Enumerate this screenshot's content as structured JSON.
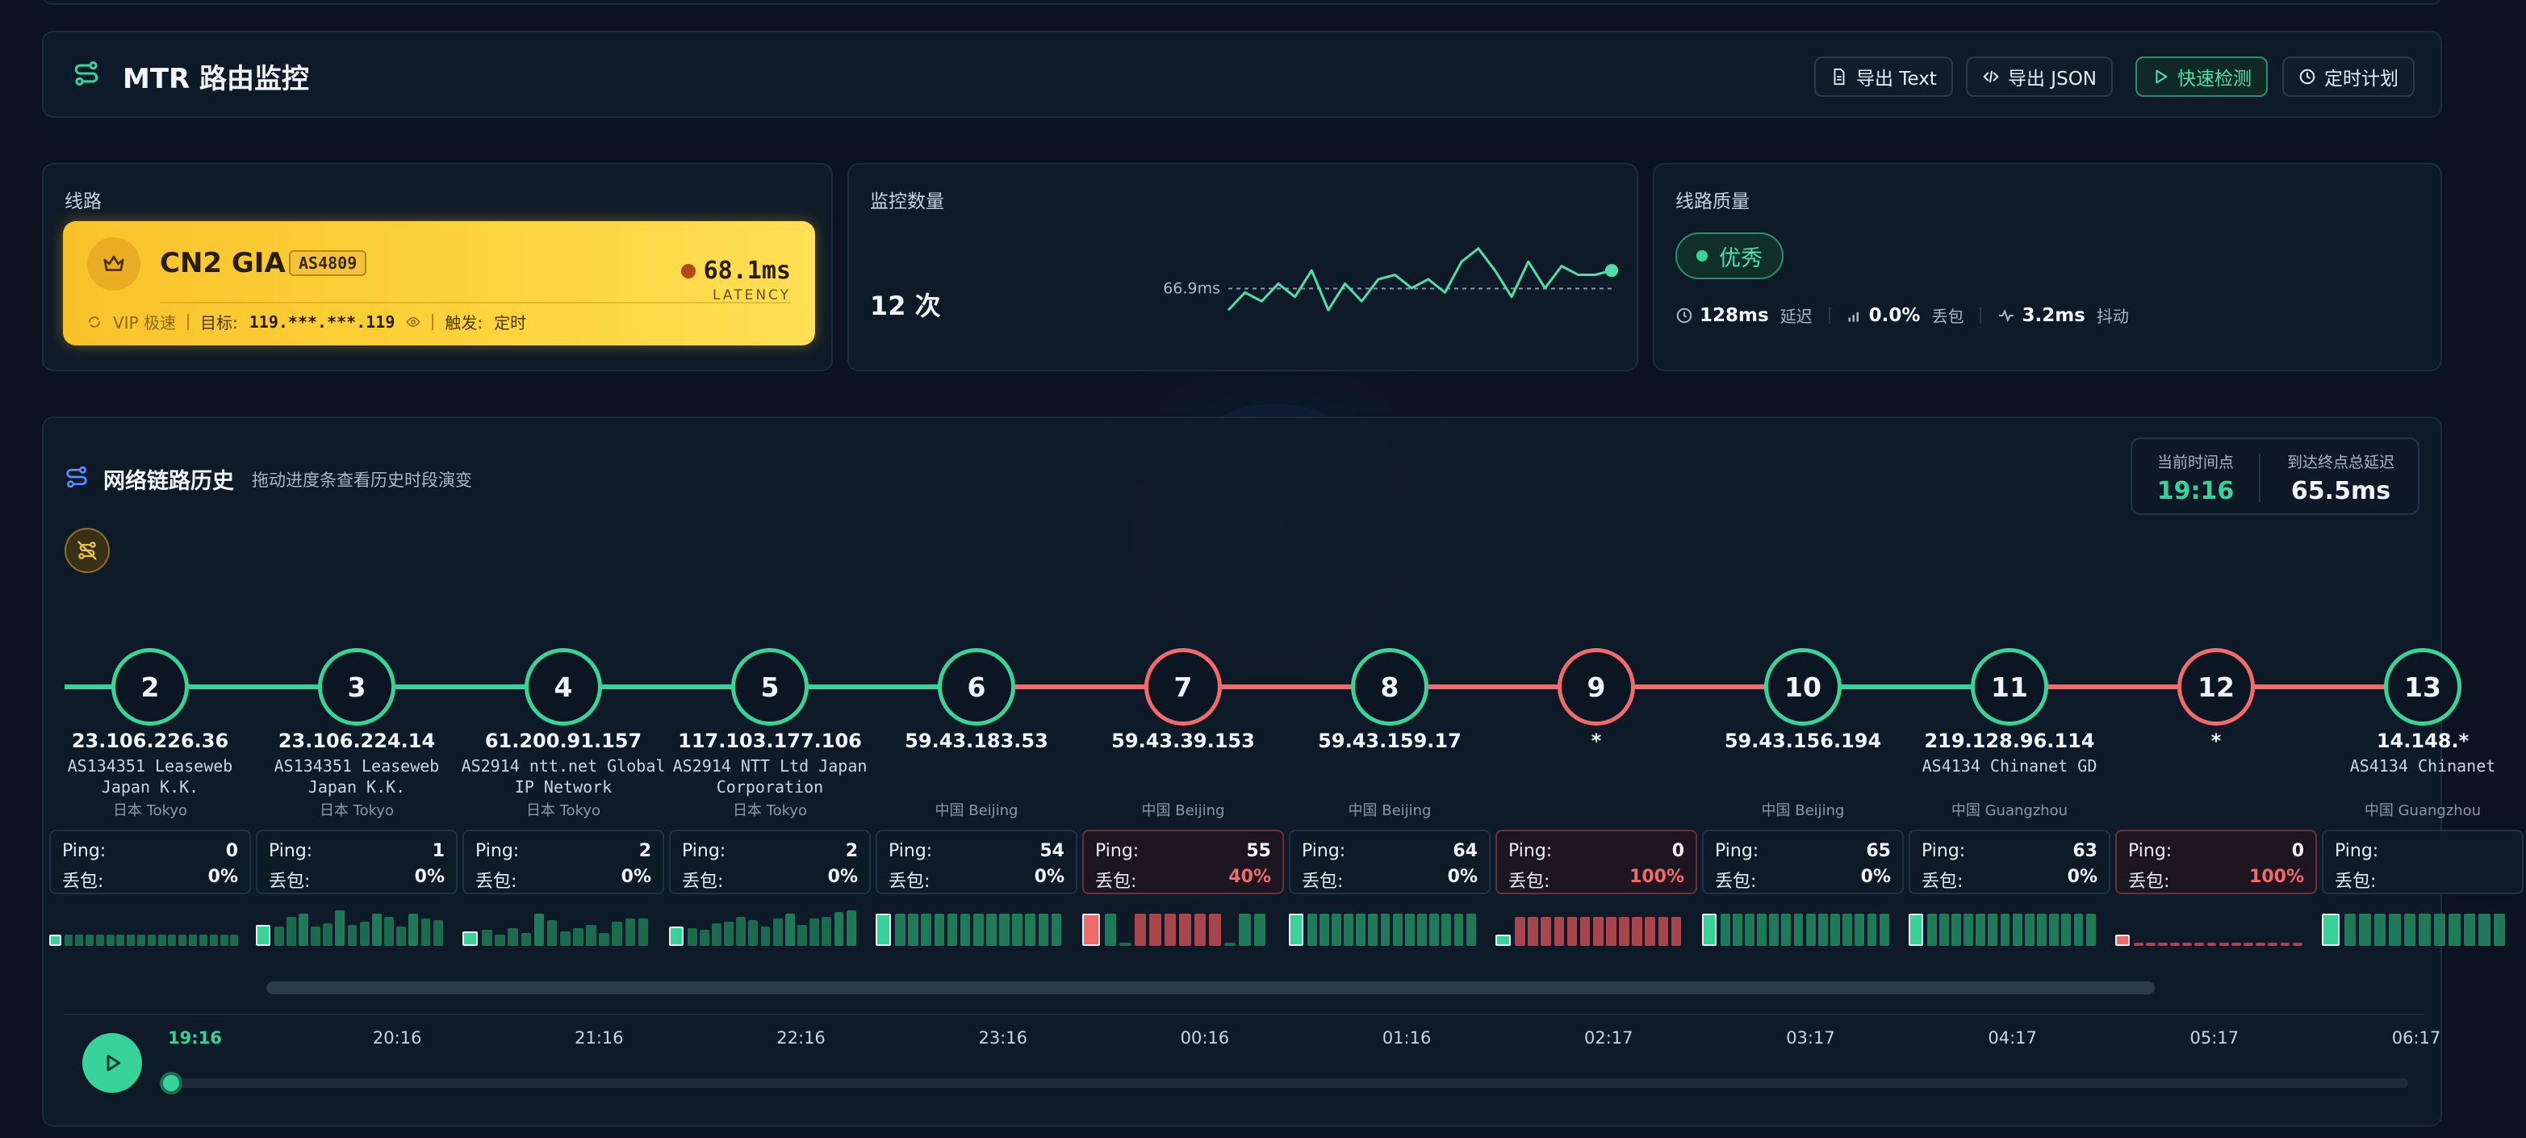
{
  "header": {
    "title": "MTR 路由监控",
    "buttons": [
      {
        "label": "导出 Text",
        "icon": "document-icon"
      },
      {
        "label": "导出 JSON",
        "icon": "code-icon"
      },
      {
        "label": "快速检测",
        "icon": "play-icon"
      },
      {
        "label": "定时计划",
        "icon": "clock-icon"
      }
    ]
  },
  "line": {
    "label": "线路",
    "name": "CN2 GIA",
    "asn": "AS4809",
    "latency": "68.1ms",
    "latency_label": "LATENCY",
    "vip_label": "VIP 极速",
    "target_label": "目标:",
    "target_value": "119.***.***.119",
    "trigger_label": "触发:",
    "trigger_value": "定时"
  },
  "count": {
    "label": "监控数量",
    "value": "12 次",
    "avg_label": "66.9ms",
    "spark_values": [
      62,
      66,
      64,
      68,
      65,
      71,
      62,
      68,
      64,
      69,
      70,
      67,
      69,
      66,
      73,
      76,
      71,
      65,
      73,
      67,
      72,
      70,
      70,
      71
    ]
  },
  "quality": {
    "label": "线路质量",
    "badge": "优秀",
    "latency_value": "128ms",
    "latency_label": "延迟",
    "loss_value": "0.0%",
    "loss_label": "丢包",
    "jitter_value": "3.2ms",
    "jitter_label": "抖动"
  },
  "history": {
    "title": "网络链路历史",
    "subtitle": "拖动进度条查看历史时段演变",
    "current_time_label": "当前时间点",
    "current_time": "19:16",
    "total_latency_label": "到达终点总延迟",
    "total_latency": "65.5ms",
    "ping_label": "Ping:",
    "loss_label": "丢包:",
    "hops": [
      {
        "n": "2",
        "ip": "23.106.226.36",
        "as": "AS134351 Leaseweb Japan K.K.",
        "loc": "日本 Tokyo",
        "ping": "0",
        "loss": "0%",
        "bad": false
      },
      {
        "n": "3",
        "ip": "23.106.224.14",
        "as": "AS134351 Leaseweb Japan K.K.",
        "loc": "日本 Tokyo",
        "ping": "1",
        "loss": "0%",
        "bad": false
      },
      {
        "n": "4",
        "ip": "61.200.91.157",
        "as": "AS2914 ntt.net Global IP Network",
        "loc": "日本 Tokyo",
        "ping": "2",
        "loss": "0%",
        "bad": false
      },
      {
        "n": "5",
        "ip": "117.103.177.106",
        "as": "AS2914 NTT Ltd Japan Corporation",
        "loc": "日本 Tokyo",
        "ping": "2",
        "loss": "0%",
        "bad": false
      },
      {
        "n": "6",
        "ip": "59.43.183.53",
        "as": "",
        "loc": "中国 Beijing",
        "ping": "54",
        "loss": "0%",
        "bad": false
      },
      {
        "n": "7",
        "ip": "59.43.39.153",
        "as": "",
        "loc": "中国 Beijing",
        "ping": "55",
        "loss": "40%",
        "bad": true
      },
      {
        "n": "8",
        "ip": "59.43.159.17",
        "as": "",
        "loc": "中国 Beijing",
        "ping": "64",
        "loss": "0%",
        "bad": false
      },
      {
        "n": "9",
        "ip": "*",
        "as": "",
        "loc": "",
        "ping": "0",
        "loss": "100%",
        "bad": true
      },
      {
        "n": "10",
        "ip": "59.43.156.194",
        "as": "",
        "loc": "中国 Beijing",
        "ping": "65",
        "loss": "0%",
        "bad": false
      },
      {
        "n": "11",
        "ip": "219.128.96.114",
        "as": "AS4134 Chinanet GD",
        "loc": "中国 Guangzhou",
        "ping": "63",
        "loss": "0%",
        "bad": false
      },
      {
        "n": "12",
        "ip": "*",
        "as": "",
        "loc": "",
        "ping": "0",
        "loss": "100%",
        "bad": true
      },
      {
        "n": "13",
        "ip": "14.148.*",
        "as": "AS4134 Chinanet",
        "loc": "中国 Guangzhou",
        "ping": "",
        "loss": "",
        "bad": false
      }
    ],
    "timeline": [
      "19:16",
      "20:16",
      "21:16",
      "22:16",
      "23:16",
      "00:16",
      "01:16",
      "02:17",
      "03:17",
      "04:17",
      "05:17",
      "06:17"
    ],
    "timeline_position": 0.0
  },
  "colors": {
    "accent": "#37d399",
    "bad": "#f26b6b",
    "gold": "#fcd33c"
  }
}
